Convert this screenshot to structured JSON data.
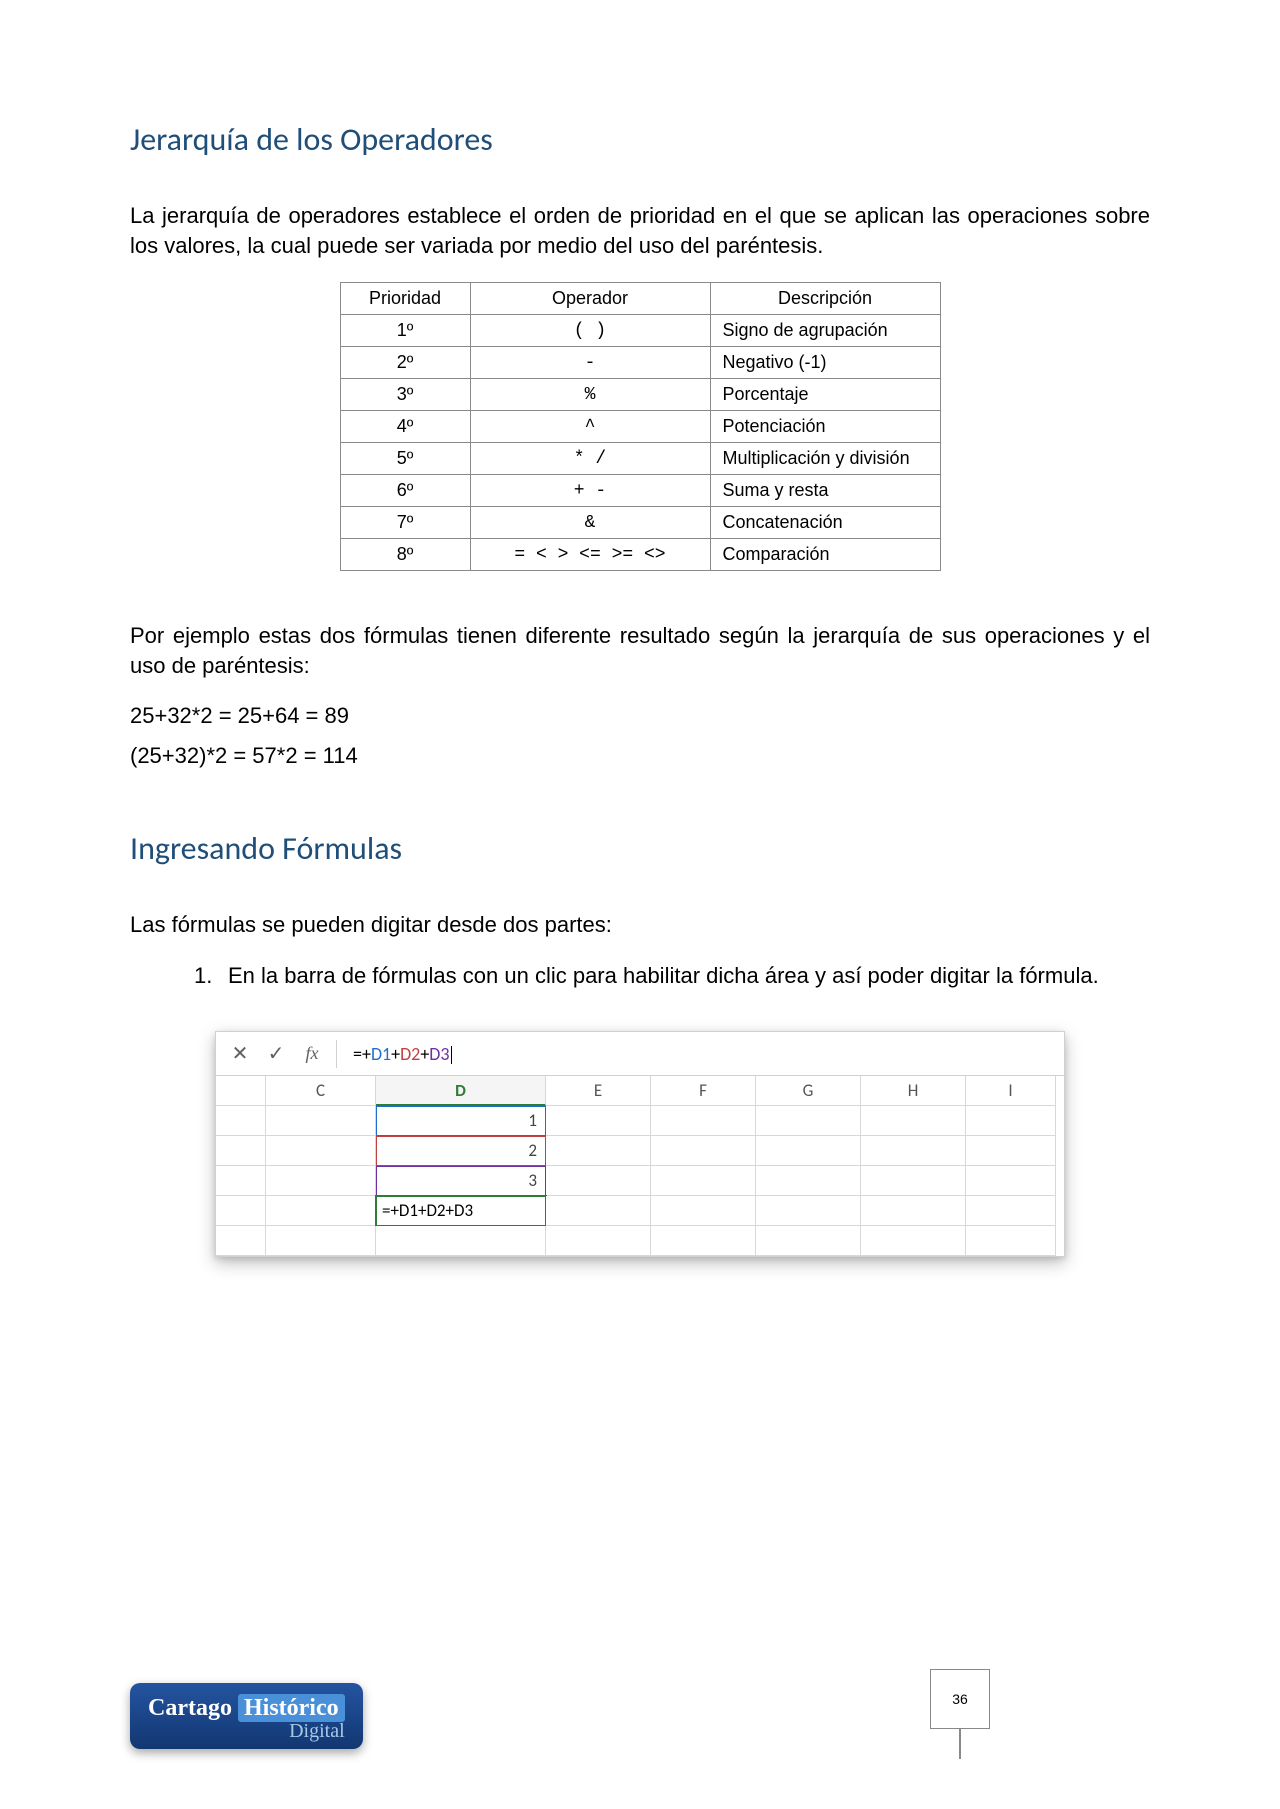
{
  "heading1": "Jerarquía de los Operadores",
  "intro1": "La jerarquía de operadores establece el orden de prioridad en el que se aplican las operaciones sobre los valores, la cual puede ser variada por medio del uso del paréntesis.",
  "opsTable": {
    "headers": {
      "prio": "Prioridad",
      "op": "Operador",
      "desc": "Descripción"
    },
    "rows": [
      {
        "prio": "1º",
        "op": "(  )",
        "desc": "Signo de agrupación"
      },
      {
        "prio": "2º",
        "op": "-",
        "desc": "Negativo (-1)"
      },
      {
        "prio": "3º",
        "op": "%",
        "desc": "Porcentaje"
      },
      {
        "prio": "4º",
        "op": "^",
        "desc": "Potenciación"
      },
      {
        "prio": "5º",
        "op": "*        /",
        "desc": "Multiplicación y división"
      },
      {
        "prio": "6º",
        "op": "+      -",
        "desc": "Suma y resta"
      },
      {
        "prio": "7º",
        "op": "&",
        "desc": "Concatenación"
      },
      {
        "prio": "8º",
        "op": "=   <   >   <=   >=   <>",
        "desc": "Comparación"
      }
    ]
  },
  "example_intro": "Por ejemplo estas dos fórmulas tienen diferente resultado según la jerarquía de sus operaciones y el uso de paréntesis:",
  "ex1": "25+32*2 = 25+64 = 89",
  "ex2": "(25+32)*2 = 57*2 = 114",
  "heading2": "Ingresando Fórmulas",
  "intro2": "Las fórmulas se pueden digitar desde dos partes:",
  "list1_num": "1.",
  "list1_text": "En la barra de fórmulas con un clic para habilitar dicha área y así poder digitar la fórmula.",
  "excel": {
    "fx": "fx",
    "cancel": "✕",
    "accept": "✓",
    "formula_prefix": "=+",
    "d1": "D1",
    "d2": "D2",
    "d3": "D3",
    "cols": [
      "",
      "C",
      "D",
      "E",
      "F",
      "G",
      "H",
      "I"
    ],
    "v1": "1",
    "v2": "2",
    "v3": "3",
    "cell_formula": "=+D1+D2+D3"
  },
  "logo": {
    "l1a": "Cartago",
    "l1b": "Histórico",
    "l2": "Digital"
  },
  "page_num": "36"
}
